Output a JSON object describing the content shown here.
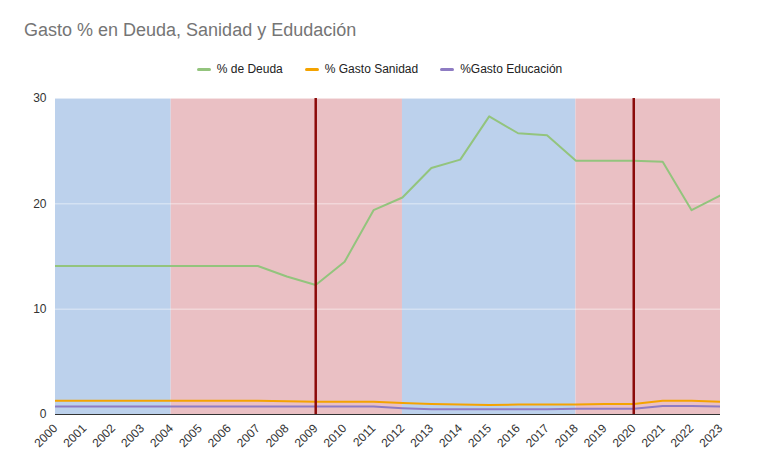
{
  "chart_data": {
    "type": "line",
    "title": "Gasto % en Deuda, Sanidad y Edudación",
    "x": [
      2000,
      2001,
      2002,
      2003,
      2004,
      2005,
      2006,
      2007,
      2008,
      2009,
      2010,
      2011,
      2012,
      2013,
      2014,
      2015,
      2016,
      2017,
      2018,
      2019,
      2020,
      2021,
      2022,
      2023
    ],
    "series": [
      {
        "name": "% de Deuda",
        "color": "#93c47d",
        "values": [
          14.1,
          14.1,
          14.1,
          14.1,
          14.1,
          14.1,
          14.1,
          14.1,
          13.1,
          12.3,
          14.5,
          19.4,
          20.6,
          23.4,
          24.2,
          28.3,
          26.7,
          26.5,
          24.1,
          24.1,
          24.1,
          24.0,
          19.4,
          20.8
        ]
      },
      {
        "name": "% Gasto Sanidad",
        "color": "#f4a300",
        "values": [
          1.3,
          1.3,
          1.3,
          1.3,
          1.3,
          1.3,
          1.3,
          1.3,
          1.25,
          1.2,
          1.2,
          1.2,
          1.1,
          1.0,
          0.95,
          0.9,
          0.95,
          0.95,
          0.95,
          1.0,
          1.0,
          1.3,
          1.3,
          1.2
        ]
      },
      {
        "name": "%Gasto Educación",
        "color": "#8e7cc3",
        "values": [
          0.75,
          0.75,
          0.75,
          0.75,
          0.75,
          0.75,
          0.75,
          0.75,
          0.75,
          0.75,
          0.75,
          0.75,
          0.6,
          0.5,
          0.5,
          0.5,
          0.5,
          0.5,
          0.55,
          0.55,
          0.55,
          0.8,
          0.8,
          0.75
        ]
      }
    ],
    "bands": [
      {
        "from": 2000,
        "to": 2004,
        "color": "#bcd1ec"
      },
      {
        "from": 2004,
        "to": 2012,
        "color": "#eac0c4"
      },
      {
        "from": 2012,
        "to": 2018,
        "color": "#bcd1ec"
      },
      {
        "from": 2018,
        "to": 2023,
        "color": "#eac0c4"
      }
    ],
    "vertical_lines": [
      {
        "x": 2009,
        "color": "#8b0a0a"
      },
      {
        "x": 2020,
        "color": "#8b0a0a"
      }
    ],
    "xlim": [
      2000,
      2023
    ],
    "xticks": [
      2000,
      2001,
      2002,
      2003,
      2004,
      2005,
      2006,
      2007,
      2008,
      2009,
      2010,
      2011,
      2012,
      2013,
      2014,
      2015,
      2016,
      2017,
      2018,
      2019,
      2020,
      2021,
      2022,
      2023
    ],
    "ylim": [
      0,
      30
    ],
    "yticks": [
      0,
      10,
      20,
      30
    ],
    "grid": true,
    "legend": "top"
  }
}
